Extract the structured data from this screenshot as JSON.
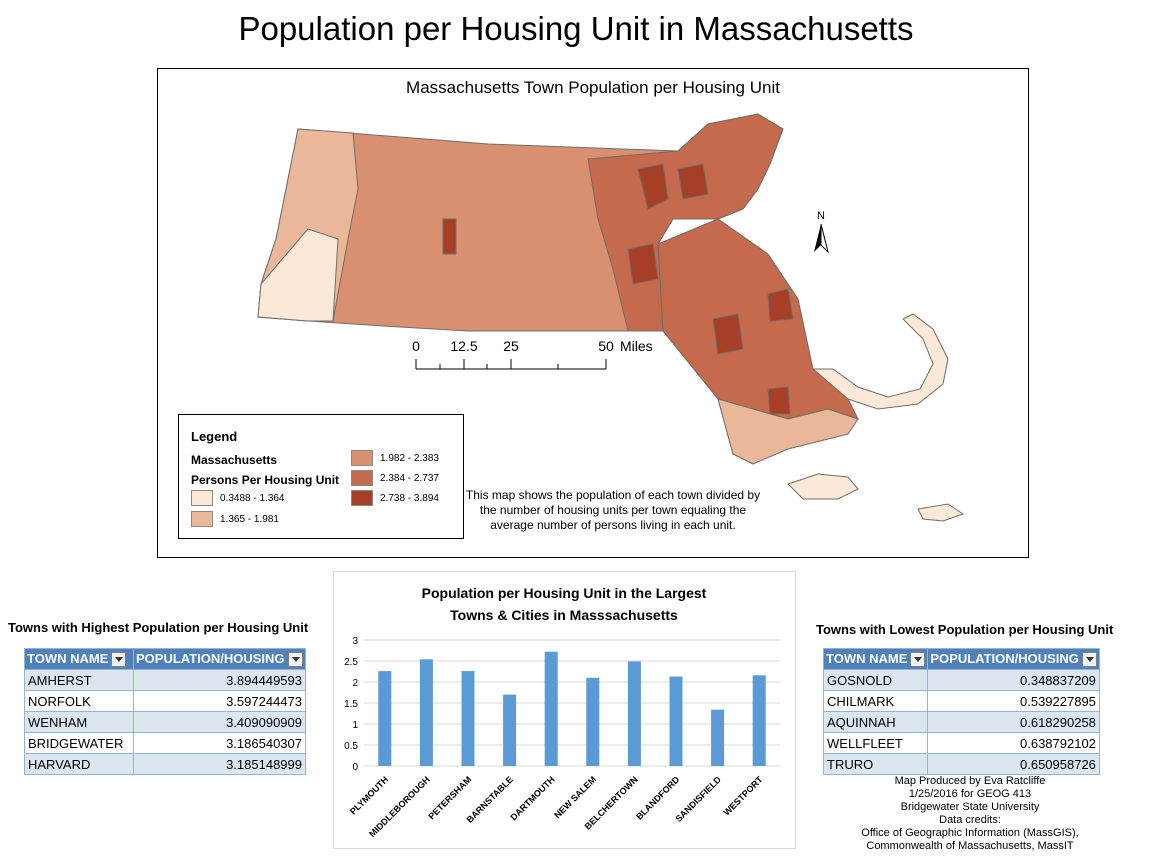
{
  "main_title": "Population per Housing Unit in Massachusetts",
  "map": {
    "title": "Massachusetts Town Population per Housing Unit",
    "north_label": "N",
    "scale_bar": {
      "ticks": [
        "0",
        "12.5",
        "25",
        "50"
      ],
      "units": "Miles"
    },
    "description": "This map shows the population of each town divided by the number of housing units per town equaling the average number of persons living in each unit.",
    "legend": {
      "title": "Legend",
      "layer": "Massachusetts",
      "field": "Persons Per Housing Unit",
      "classes": [
        {
          "label": "0.3488 - 1.364",
          "color": "#fbe8d6"
        },
        {
          "label": "1.365 - 1.981",
          "color": "#eab899"
        },
        {
          "label": "1.982 - 2.383",
          "color": "#d89070"
        },
        {
          "label": "2.384 - 2.737",
          "color": "#c56a4c"
        },
        {
          "label": "2.738 - 3.894",
          "color": "#a73e26"
        }
      ]
    }
  },
  "highest_table": {
    "heading": "Towns with Highest Population per Housing Unit",
    "col_town": "TOWN NAME",
    "col_value": "POPULATION/HOUSING",
    "rows": [
      {
        "town": "AMHERST",
        "value": "3.894449593"
      },
      {
        "town": "NORFOLK",
        "value": "3.597244473"
      },
      {
        "town": "WENHAM",
        "value": "3.409090909"
      },
      {
        "town": "BRIDGEWATER",
        "value": "3.186540307"
      },
      {
        "town": "HARVARD",
        "value": "3.185148999"
      }
    ]
  },
  "lowest_table": {
    "heading": "Towns with Lowest Population per Housing Unit",
    "col_town": "TOWN NAME",
    "col_value": "POPULATION/HOUSING",
    "rows": [
      {
        "town": "GOSNOLD",
        "value": "0.348837209"
      },
      {
        "town": "CHILMARK",
        "value": "0.539227895"
      },
      {
        "town": "AQUINNAH",
        "value": "0.618290258"
      },
      {
        "town": "WELLFLEET",
        "value": "0.638792102"
      },
      {
        "town": "TRURO",
        "value": "0.650958726"
      }
    ]
  },
  "chart_data": {
    "type": "bar",
    "title": "Population per Housing Unit in the Largest Towns & Cities in Masssachusetts",
    "title_lines": [
      "Population per Housing Unit in the Largest",
      "Towns & Cities in Masssachusetts"
    ],
    "categories": [
      "PLYMOUTH",
      "MIDDLEBOROUGH",
      "PETERSHAM",
      "BARNSTABLE",
      "DARTMOUTH",
      "NEW SALEM",
      "BELCHERTOWN",
      "BLANDFORD",
      "SANDISFIELD",
      "WESTPORT"
    ],
    "values": [
      2.26,
      2.54,
      2.26,
      1.7,
      2.72,
      2.1,
      2.49,
      2.13,
      1.34,
      2.16
    ],
    "ylim": [
      0,
      3
    ],
    "yticks": [
      "0",
      "0.5",
      "1",
      "1.5",
      "2",
      "2.5",
      "3"
    ],
    "grid": true,
    "bar_color": "#5b9bd5"
  },
  "credits": [
    "Map Produced by Eva Ratcliffe",
    "1/25/2016 for GEOG 413",
    "Bridgewater State University",
    "Data credits:",
    "Office of Geographic Information (MassGIS),",
    "Commonwealth of Massachusetts, MassIT"
  ]
}
